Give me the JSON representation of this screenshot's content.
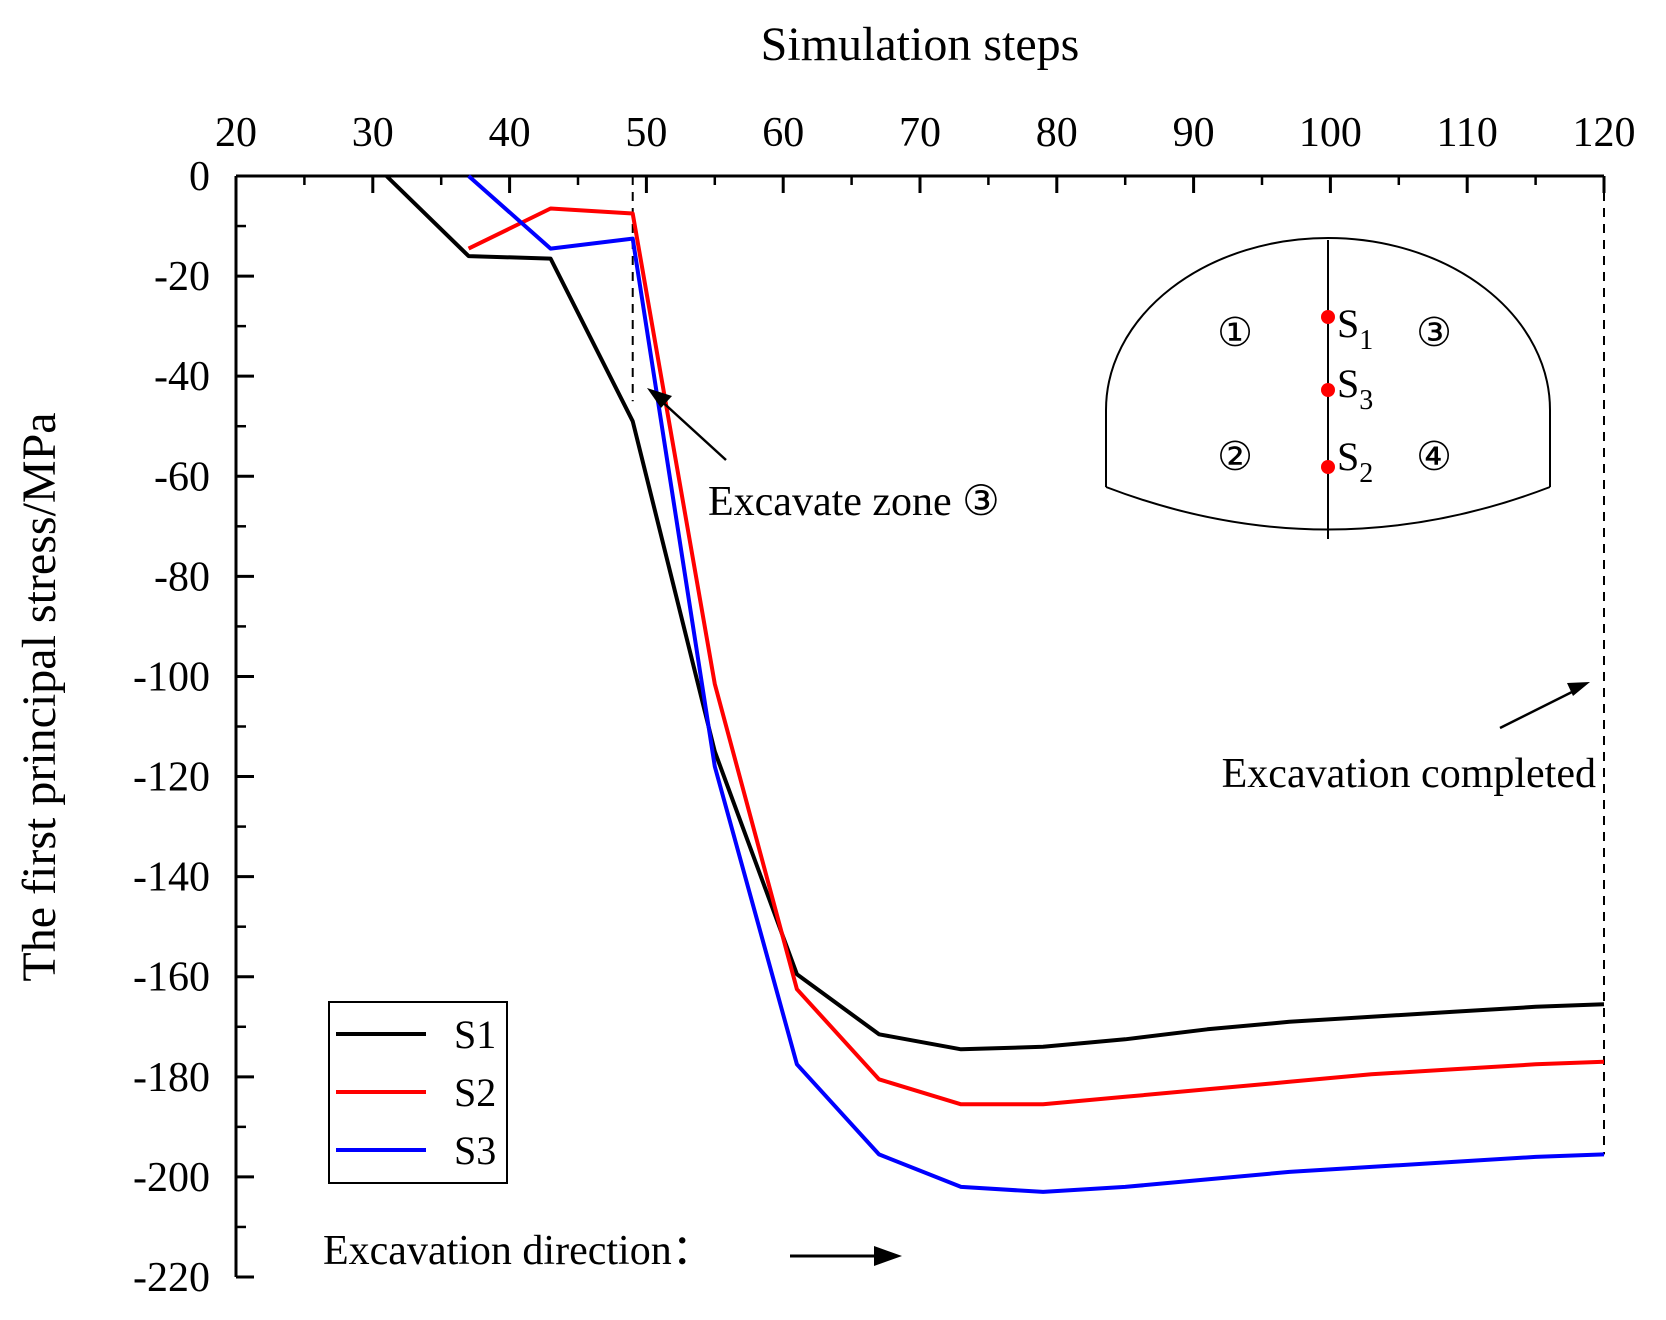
{
  "chart_data": {
    "type": "line",
    "title": "",
    "xlabel": "Simulation steps",
    "ylabel": "The first principal stress/MPa",
    "xlim": [
      20,
      120
    ],
    "ylim": [
      -220,
      0
    ],
    "x_axis_position": "top",
    "x_ticks": [
      20,
      30,
      40,
      50,
      60,
      70,
      80,
      90,
      100,
      110,
      120
    ],
    "y_ticks": [
      0,
      -20,
      -40,
      -60,
      -80,
      -100,
      -120,
      -140,
      -160,
      -180,
      -200,
      -220
    ],
    "grid": false,
    "legend_position": "bottom-left",
    "series": [
      {
        "name": "S1",
        "color": "#000000",
        "x": [
          31,
          37,
          43,
          49,
          55,
          61,
          67,
          73,
          79,
          85,
          91,
          97,
          103,
          109,
          115,
          120
        ],
        "y": [
          0,
          -16,
          -16.5,
          -49,
          -115,
          -159.5,
          -171.5,
          -174.5,
          -174,
          -172.5,
          -170.5,
          -169,
          -168,
          -167,
          -166,
          -165.5
        ]
      },
      {
        "name": "S2",
        "color": "#ff0000",
        "x": [
          37,
          43,
          49,
          55,
          61,
          67,
          73,
          79,
          85,
          91,
          97,
          103,
          109,
          115,
          120
        ],
        "y": [
          -14.5,
          -6.5,
          -7.5,
          -101.5,
          -162.5,
          -180.5,
          -185.5,
          -185.5,
          -184,
          -182.5,
          -181,
          -179.5,
          -178.5,
          -177.5,
          -177
        ]
      },
      {
        "name": "S3",
        "color": "#0000ff",
        "x": [
          37,
          43,
          49,
          55,
          61,
          67,
          73,
          79,
          85,
          91,
          97,
          103,
          109,
          115,
          120
        ],
        "y": [
          0,
          -14.5,
          -12.5,
          -118,
          -177.5,
          -195.5,
          -202,
          -203,
          -202,
          -200.5,
          -199,
          -198,
          -197,
          -196,
          -195.5
        ]
      }
    ],
    "annotations": {
      "excavate_zone": "Excavate zone ③",
      "excavation_completed": "Excavation completed",
      "excavation_direction": "Excavation direction：",
      "excavate_zone_step": 49,
      "completed_step": 120
    },
    "inset": {
      "zones": [
        "①",
        "②",
        "③",
        "④"
      ],
      "points": [
        {
          "letter": "S",
          "sub": "1",
          "color": "#ff0000"
        },
        {
          "letter": "S",
          "sub": "3",
          "color": "#ff0000"
        },
        {
          "letter": "S",
          "sub": "2",
          "color": "#ff0000"
        }
      ]
    }
  }
}
